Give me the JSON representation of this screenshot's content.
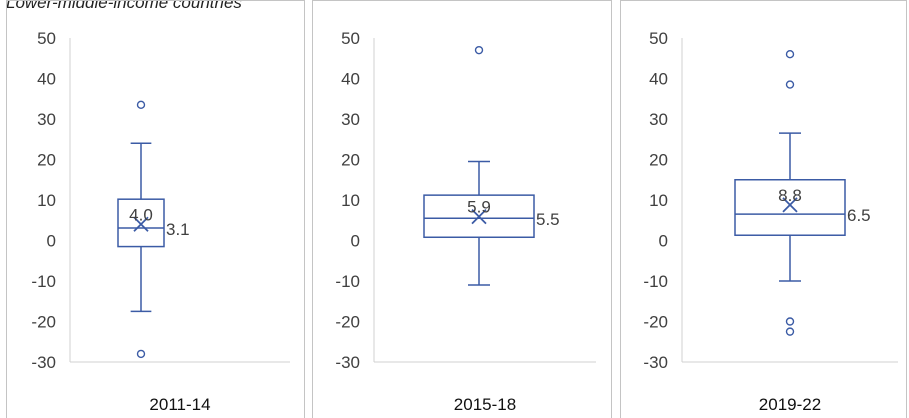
{
  "caption": "Lower-middle-income countries",
  "chart_data": [
    {
      "type": "box",
      "xlabel": "2011-14",
      "ylim": [
        -30,
        50
      ],
      "yticks": [
        50,
        40,
        30,
        20,
        10,
        0,
        -10,
        -20,
        -30
      ],
      "whisker_low": -17.5,
      "q1": -1.5,
      "median": 3.1,
      "q3": 10.2,
      "whisker_high": 24,
      "mean": 4.0,
      "outliers": [
        33.5,
        -28
      ],
      "labels": {
        "mean": "4.0",
        "median": "3.1"
      }
    },
    {
      "type": "box",
      "xlabel": "2015-18",
      "ylim": [
        -30,
        50
      ],
      "yticks": [
        50,
        40,
        30,
        20,
        10,
        0,
        -10,
        -20,
        -30
      ],
      "whisker_low": -11,
      "q1": 0.8,
      "median": 5.5,
      "q3": 11.2,
      "whisker_high": 19.5,
      "mean": 5.9,
      "outliers": [
        47
      ],
      "labels": {
        "mean": "5.9",
        "median": "5.5"
      }
    },
    {
      "type": "box",
      "xlabel": "2019-22",
      "ylim": [
        -30,
        50
      ],
      "yticks": [
        50,
        40,
        30,
        20,
        10,
        0,
        -10,
        -20,
        -30
      ],
      "whisker_low": -10,
      "q1": 1.3,
      "median": 6.5,
      "q3": 15,
      "whisker_high": 26.5,
      "mean": 8.8,
      "outliers": [
        46,
        38.5,
        -20,
        -22.5
      ],
      "labels": {
        "mean": "8.8",
        "median": "6.5"
      }
    }
  ],
  "colors": {
    "box": "#3b5ba5",
    "axis": "#d0d0d0",
    "border": "#c4c4c4",
    "text": "#404040"
  }
}
